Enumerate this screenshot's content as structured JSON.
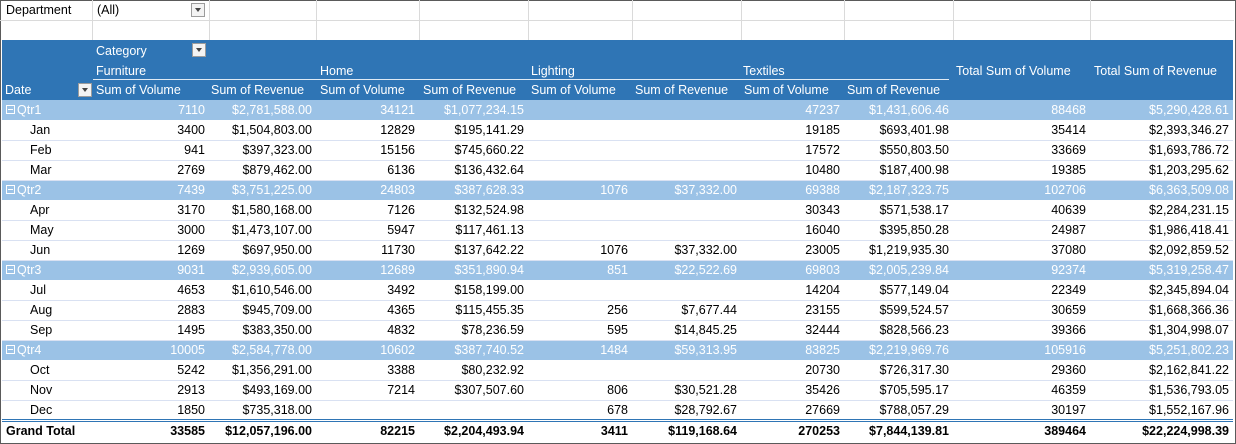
{
  "filter": {
    "label": "Department",
    "value": "(All)"
  },
  "header": {
    "category_label": "Category",
    "row_field": "Date",
    "categories": [
      "Furniture",
      "Home",
      "Lighting",
      "Textiles"
    ],
    "measures": [
      "Sum of Volume",
      "Sum of Revenue"
    ],
    "total_volume": "Total Sum of Volume",
    "total_revenue": "Total Sum of Revenue"
  },
  "rows": [
    {
      "type": "qtr",
      "label": "Qtr1",
      "cells": [
        "7110",
        "$2,781,588.00",
        "34121",
        "$1,077,234.15",
        "",
        "",
        "47237",
        "$1,431,606.46",
        "88468",
        "$5,290,428.61"
      ]
    },
    {
      "type": "month",
      "label": "Jan",
      "cells": [
        "3400",
        "$1,504,803.00",
        "12829",
        "$195,141.29",
        "",
        "",
        "19185",
        "$693,401.98",
        "35414",
        "$2,393,346.27"
      ]
    },
    {
      "type": "month",
      "label": "Feb",
      "cells": [
        "941",
        "$397,323.00",
        "15156",
        "$745,660.22",
        "",
        "",
        "17572",
        "$550,803.50",
        "33669",
        "$1,693,786.72"
      ]
    },
    {
      "type": "month",
      "label": "Mar",
      "cells": [
        "2769",
        "$879,462.00",
        "6136",
        "$136,432.64",
        "",
        "",
        "10480",
        "$187,400.98",
        "19385",
        "$1,203,295.62"
      ]
    },
    {
      "type": "qtr",
      "label": "Qtr2",
      "cells": [
        "7439",
        "$3,751,225.00",
        "24803",
        "$387,628.33",
        "1076",
        "$37,332.00",
        "69388",
        "$2,187,323.75",
        "102706",
        "$6,363,509.08"
      ]
    },
    {
      "type": "month",
      "label": "Apr",
      "cells": [
        "3170",
        "$1,580,168.00",
        "7126",
        "$132,524.98",
        "",
        "",
        "30343",
        "$571,538.17",
        "40639",
        "$2,284,231.15"
      ]
    },
    {
      "type": "month",
      "label": "May",
      "cells": [
        "3000",
        "$1,473,107.00",
        "5947",
        "$117,461.13",
        "",
        "",
        "16040",
        "$395,850.28",
        "24987",
        "$1,986,418.41"
      ]
    },
    {
      "type": "month",
      "label": "Jun",
      "cells": [
        "1269",
        "$697,950.00",
        "11730",
        "$137,642.22",
        "1076",
        "$37,332.00",
        "23005",
        "$1,219,935.30",
        "37080",
        "$2,092,859.52"
      ]
    },
    {
      "type": "qtr",
      "label": "Qtr3",
      "cells": [
        "9031",
        "$2,939,605.00",
        "12689",
        "$351,890.94",
        "851",
        "$22,522.69",
        "69803",
        "$2,005,239.84",
        "92374",
        "$5,319,258.47"
      ]
    },
    {
      "type": "month",
      "label": "Jul",
      "cells": [
        "4653",
        "$1,610,546.00",
        "3492",
        "$158,199.00",
        "",
        "",
        "14204",
        "$577,149.04",
        "22349",
        "$2,345,894.04"
      ]
    },
    {
      "type": "month",
      "label": "Aug",
      "cells": [
        "2883",
        "$945,709.00",
        "4365",
        "$115,455.35",
        "256",
        "$7,677.44",
        "23155",
        "$599,524.57",
        "30659",
        "$1,668,366.36"
      ]
    },
    {
      "type": "month",
      "label": "Sep",
      "cells": [
        "1495",
        "$383,350.00",
        "4832",
        "$78,236.59",
        "595",
        "$14,845.25",
        "32444",
        "$828,566.23",
        "39366",
        "$1,304,998.07"
      ]
    },
    {
      "type": "qtr",
      "label": "Qtr4",
      "cells": [
        "10005",
        "$2,584,778.00",
        "10602",
        "$387,740.52",
        "1484",
        "$59,313.95",
        "83825",
        "$2,219,969.76",
        "105916",
        "$5,251,802.23"
      ]
    },
    {
      "type": "month",
      "label": "Oct",
      "cells": [
        "5242",
        "$1,356,291.00",
        "3388",
        "$80,232.92",
        "",
        "",
        "20730",
        "$726,317.30",
        "29360",
        "$2,162,841.22"
      ]
    },
    {
      "type": "month",
      "label": "Nov",
      "cells": [
        "2913",
        "$493,169.00",
        "7214",
        "$307,507.60",
        "806",
        "$30,521.28",
        "35426",
        "$705,595.17",
        "46359",
        "$1,536,793.05"
      ]
    },
    {
      "type": "month",
      "label": "Dec",
      "cells": [
        "1850",
        "$735,318.00",
        "",
        "",
        "678",
        "$28,792.67",
        "27669",
        "$788,057.29",
        "30197",
        "$1,552,167.96"
      ]
    }
  ],
  "grand_total": {
    "label": "Grand Total",
    "cells": [
      "33585",
      "$12,057,196.00",
      "82215",
      "$2,204,493.94",
      "3411",
      "$119,168.64",
      "270253",
      "$7,844,139.81",
      "389464",
      "$22,224,998.39"
    ]
  },
  "colors": {
    "header": "#2f75b5",
    "subtotal": "#9bc2e6"
  }
}
